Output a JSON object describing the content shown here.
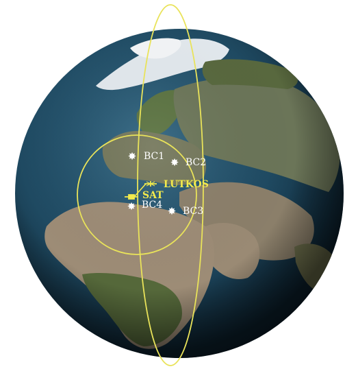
{
  "globe": {
    "ocean_color": "#234b63",
    "ocean_deep_color": "#0c1f2c",
    "land_colors": {
      "forest": "#4f6e35",
      "desert": "#a08f7a",
      "steppe": "#7d7761",
      "ice": "#e8eef2"
    }
  },
  "overlay": {
    "color": "#e9e35a",
    "orbit_name": "satellite-orbit",
    "footprint_name": "coverage-footprint"
  },
  "stations": [
    {
      "id": "bc1",
      "label": "BC1",
      "color": "#ffffff"
    },
    {
      "id": "bc2",
      "label": "BC2",
      "color": "#ffffff"
    },
    {
      "id": "bc3",
      "label": "BC3",
      "color": "#ffffff"
    },
    {
      "id": "bc4",
      "label": "BC4",
      "color": "#ffffff"
    }
  ],
  "lut": {
    "label": "LUTKOS",
    "icon": "ground-station-icon",
    "color": "#f2ea4c"
  },
  "satellite": {
    "label": "SAT",
    "icon": "satellite-icon",
    "color": "#f2ea4c"
  }
}
